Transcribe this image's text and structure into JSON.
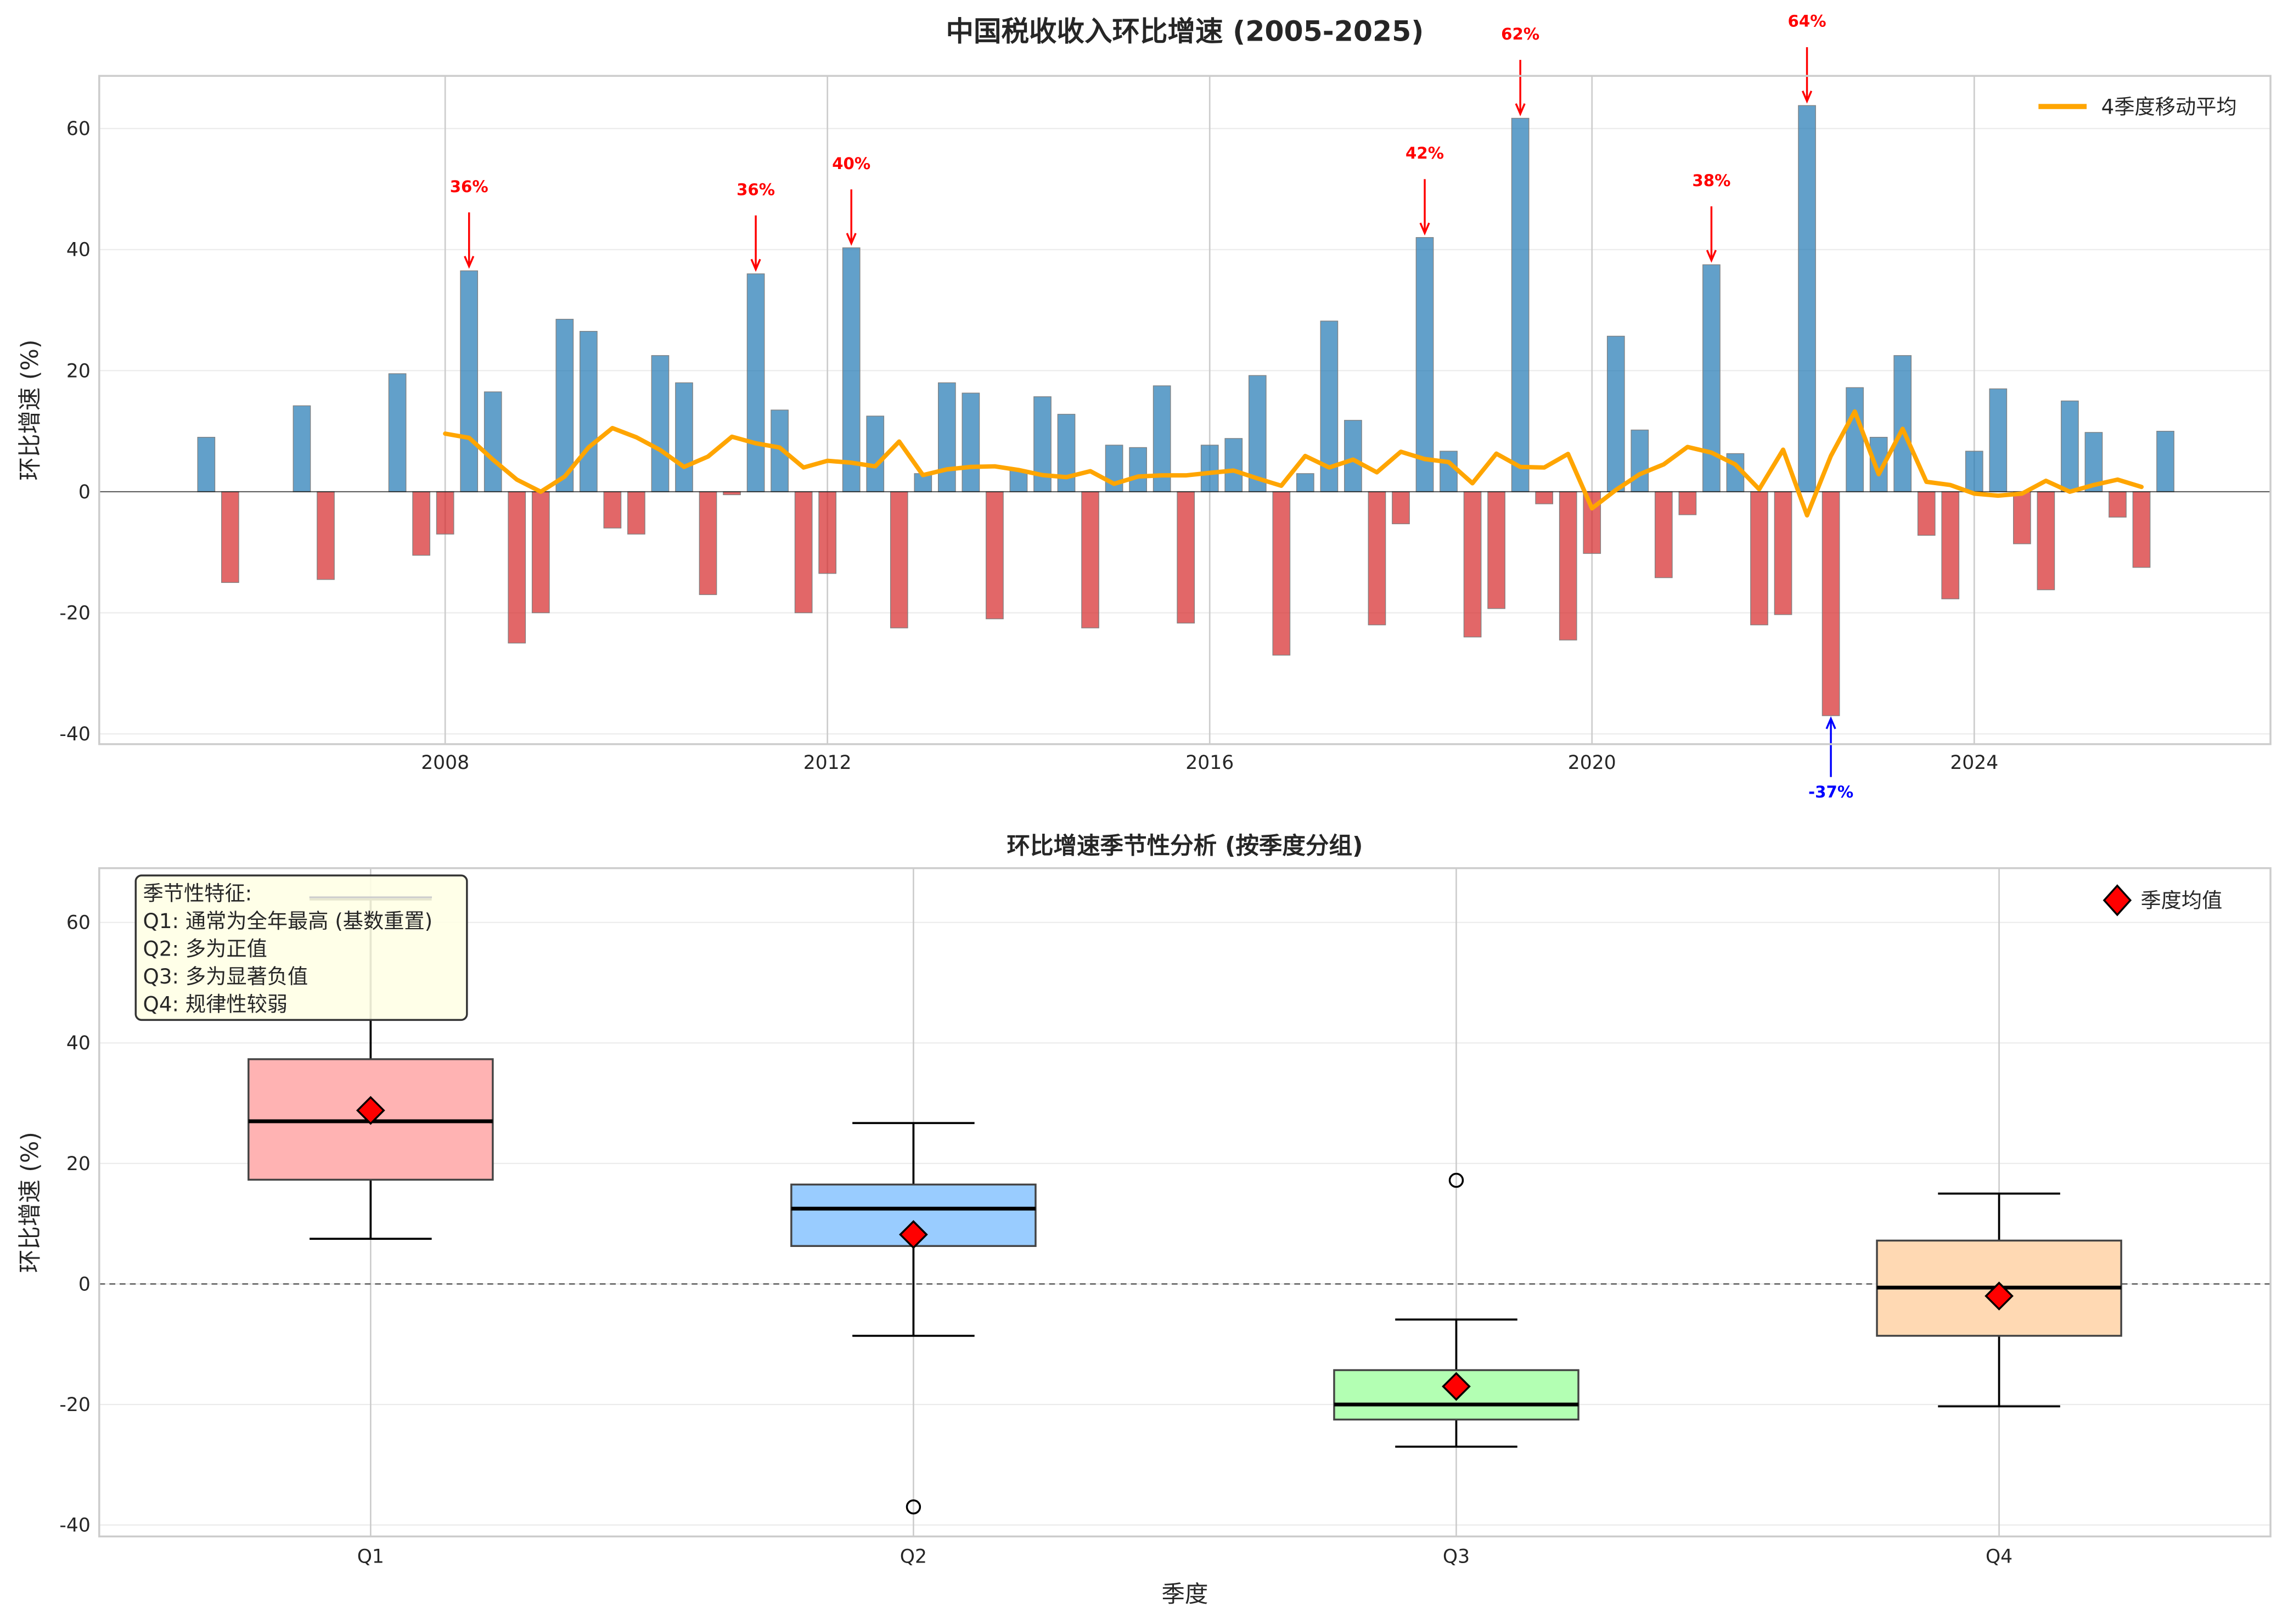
{
  "chart_data": [
    {
      "type": "bar",
      "title": "中国税收收入环比增速 (2005-2025)",
      "xlabel": "",
      "ylabel": "环比增速 (%)",
      "xlim": [
        2004.38,
        2027.1
      ],
      "ylim": [
        -41.7,
        68.7
      ],
      "xticks": [
        2008,
        2012,
        2016,
        2020,
        2024
      ],
      "xtick_labels": [
        "2008",
        "2012",
        "2016",
        "2020",
        "2024"
      ],
      "yticks": [
        -40,
        -20,
        0,
        20,
        40,
        60
      ],
      "ytick_labels": [
        "-40",
        "-20",
        "0",
        "20",
        "40",
        "60"
      ],
      "grid": true,
      "positive_color": "#1f77b4",
      "negative_color": "#d62728",
      "bars": {
        "x": [
          2005.5,
          2005.75,
          2006.5,
          2006.75,
          2007.5,
          2007.75,
          2008.0,
          2008.25,
          2008.5,
          2008.75,
          2009.0,
          2009.25,
          2009.5,
          2009.75,
          2010.0,
          2010.25,
          2010.5,
          2010.75,
          2011.0,
          2011.25,
          2011.5,
          2011.75,
          2012.0,
          2012.25,
          2012.5,
          2012.75,
          2013.0,
          2013.25,
          2013.5,
          2013.75,
          2014.0,
          2014.25,
          2014.5,
          2014.75,
          2015.0,
          2015.25,
          2015.5,
          2015.75,
          2016.0,
          2016.25,
          2016.5,
          2016.75,
          2017.0,
          2017.25,
          2017.5,
          2017.75,
          2018.0,
          2018.25,
          2018.5,
          2018.75,
          2019.0,
          2019.25,
          2019.5,
          2019.75,
          2020.0,
          2020.25,
          2020.5,
          2020.75,
          2021.0,
          2021.25,
          2021.5,
          2021.75,
          2022.0,
          2022.25,
          2022.5,
          2022.75,
          2023.0,
          2023.25,
          2023.5,
          2023.75,
          2024.0,
          2024.25,
          2024.5,
          2024.75,
          2025.0,
          2025.25,
          2025.5,
          2025.75,
          2026.0
        ],
        "values": [
          9,
          -15,
          14.2,
          -14.5,
          19.5,
          -10.5,
          -7,
          36.5,
          16.5,
          -25,
          -20,
          28.5,
          26.5,
          -6,
          -7,
          22.5,
          18,
          -17,
          -0.5,
          36,
          13.5,
          -20,
          -13.5,
          40.3,
          12.5,
          -22.5,
          3,
          18,
          16.3,
          -21,
          3.5,
          15.7,
          12.8,
          -22.5,
          7.7,
          7.3,
          17.5,
          -21.7,
          7.7,
          8.8,
          19.2,
          -27,
          3,
          28.2,
          11.8,
          -22,
          -5.3,
          42,
          6.7,
          -24,
          -19.3,
          61.7,
          -2,
          -24.5,
          -10.2,
          25.7,
          10.2,
          -14.2,
          -3.8,
          37.5,
          6.3,
          -22,
          -20.3,
          63.8,
          -37,
          17.2,
          9,
          22.5,
          -7.2,
          -17.7,
          6.7,
          17,
          -8.6,
          -16.2,
          15,
          9.8,
          -4.2,
          -12.5,
          10
        ]
      },
      "series": [
        {
          "name": "4季度移动平均",
          "type": "line",
          "color": "#ffa500",
          "x": [
            2008.0,
            2008.25,
            2008.5,
            2008.75,
            2009.0,
            2009.25,
            2009.5,
            2009.75,
            2010.0,
            2010.25,
            2010.5,
            2010.75,
            2011.0,
            2011.25,
            2011.5,
            2011.75,
            2012.0,
            2012.25,
            2012.5,
            2012.75,
            2013.0,
            2013.25,
            2013.5,
            2013.75,
            2014.0,
            2014.25,
            2014.5,
            2014.75,
            2015.0,
            2015.25,
            2015.5,
            2015.75,
            2016.0,
            2016.25,
            2016.5,
            2016.75,
            2017.0,
            2017.25,
            2017.5,
            2017.75,
            2018.0,
            2018.25,
            2018.5,
            2018.75,
            2019.0,
            2019.25,
            2019.5,
            2019.75,
            2020.0,
            2020.25,
            2020.5,
            2020.75,
            2021.0,
            2021.25,
            2021.5,
            2021.75,
            2022.0,
            2022.25,
            2022.5,
            2022.75,
            2023.0,
            2023.25,
            2023.5,
            2023.75,
            2024.0,
            2024.25,
            2024.5,
            2024.75,
            2025.0,
            2025.25,
            2025.5,
            2025.75
          ],
          "values": [
            9.6,
            8.9,
            5.3,
            2.0,
            0.0,
            2.5,
            7.3,
            10.5,
            9.0,
            6.9,
            4.1,
            5.8,
            9.1,
            8.0,
            7.3,
            4.0,
            5.1,
            4.8,
            4.2,
            8.3,
            2.75,
            3.7,
            4.1,
            4.2,
            3.6,
            2.75,
            2.4,
            3.4,
            1.3,
            2.5,
            2.7,
            2.7,
            3.1,
            3.5,
            2.2,
            1.0,
            5.9,
            4.0,
            5.3,
            3.2,
            6.6,
            5.4,
            4.9,
            1.4,
            6.3,
            4.1,
            4.0,
            6.25,
            -2.75,
            0.3,
            2.9,
            4.5,
            7.4,
            6.45,
            4.5,
            0.4,
            6.95,
            -3.9,
            5.9,
            13.25,
            2.9,
            10.4,
            1.65,
            1.1,
            -0.3,
            -0.65,
            -0.3,
            1.8,
            0.0,
            1.1,
            2.0,
            0.8
          ]
        }
      ],
      "legend": {
        "position": "top-right",
        "entries": [
          "4季度移动平均"
        ]
      },
      "annotations": [
        {
          "x": 2008.25,
          "value": 36.5,
          "label": "36%",
          "color": "#ff0000"
        },
        {
          "x": 2011.25,
          "value": 36.0,
          "label": "36%",
          "color": "#ff0000"
        },
        {
          "x": 2012.25,
          "value": 40.3,
          "label": "40%",
          "color": "#ff0000"
        },
        {
          "x": 2018.25,
          "value": 42.0,
          "label": "42%",
          "color": "#ff0000"
        },
        {
          "x": 2019.25,
          "value": 61.7,
          "label": "62%",
          "color": "#ff0000"
        },
        {
          "x": 2021.25,
          "value": 37.5,
          "label": "38%",
          "color": "#ff0000"
        },
        {
          "x": 2022.25,
          "value": 63.8,
          "label": "64%",
          "color": "#ff0000"
        },
        {
          "x": 2022.5,
          "value": -37.0,
          "label": "-37%",
          "color": "#0000ff"
        }
      ]
    },
    {
      "type": "box",
      "title": "环比增速季节性分析 (按季度分组)",
      "xlabel": "季度",
      "ylabel": "环比增速 (%)",
      "ylim": [
        -41.9,
        69
      ],
      "yticks": [
        -40,
        -20,
        0,
        20,
        40,
        60
      ],
      "ytick_labels": [
        "-40",
        "-20",
        "0",
        "20",
        "40",
        "60"
      ],
      "grid": true,
      "categories": [
        "Q1",
        "Q2",
        "Q3",
        "Q4"
      ],
      "boxes": [
        {
          "whisker_low": 7.5,
          "q1": 17.3,
          "median": 27.0,
          "q3": 37.3,
          "whisker_high": 63.8,
          "mean": 28.8,
          "outliers": [],
          "color": "#ffb3b3"
        },
        {
          "whisker_low": -8.6,
          "q1": 6.3,
          "median": 12.5,
          "q3": 16.5,
          "whisker_high": 26.7,
          "mean": 8.2,
          "outliers": [
            -37.0
          ],
          "color": "#99ccff"
        },
        {
          "whisker_low": -27.0,
          "q1": -22.5,
          "median": -20.0,
          "q3": -14.3,
          "whisker_high": -5.9,
          "mean": -17.0,
          "outliers": [
            17.2
          ],
          "color": "#b3ffb3"
        },
        {
          "whisker_low": -20.3,
          "q1": -8.6,
          "median": -0.6,
          "q3": 7.2,
          "whisker_high": 15.0,
          "mean": -2.0,
          "outliers": [],
          "color": "#ffd9b3"
        }
      ],
      "mean_marker_color": "#ff0000",
      "legend": {
        "position": "top-right",
        "entries": [
          "季度均值"
        ]
      },
      "text_box": {
        "lines": [
          "季节性特征:",
          "Q1: 通常为全年最高 (基数重置)",
          "Q2: 多为正值",
          "Q3: 多为显著负值",
          "Q4: 规律性较弱"
        ],
        "background": "#ffffe6"
      }
    }
  ]
}
